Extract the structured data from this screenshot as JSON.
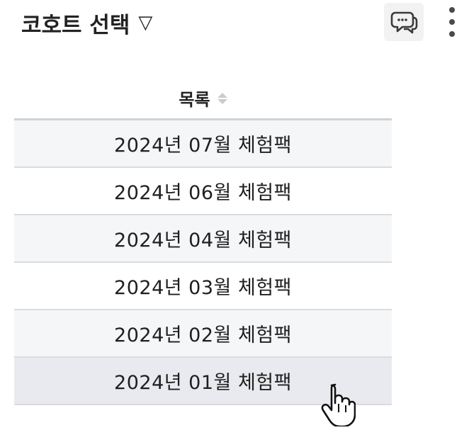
{
  "header": {
    "title": "코호트 선택",
    "title_caret": "▽",
    "chat_button_icon": "chat-bubbles-icon",
    "more_button_icon": "more-vertical-icon"
  },
  "table": {
    "column_header": "목록",
    "sort_icon": "sort-icon",
    "rows": [
      {
        "label": "2024년 07월 체험팩"
      },
      {
        "label": "2024년 06월 체험팩"
      },
      {
        "label": "2024년 04월 체험팩"
      },
      {
        "label": "2024년 03월 체험팩"
      },
      {
        "label": "2024년 02월 체험팩"
      },
      {
        "label": "2024년 01월 체험팩"
      }
    ],
    "hovered_row": 5
  },
  "colors": {
    "stripe": "#f5f6f8",
    "hover": "#e8eaef",
    "divider": "#d9dbde",
    "header_border": "#cfd2d6"
  }
}
